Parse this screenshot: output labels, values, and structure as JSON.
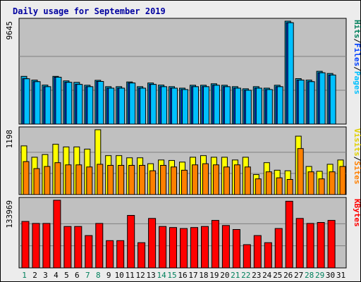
{
  "chart_data": {
    "type": "bar",
    "title": "Daily usage for September 2019",
    "colors": {
      "background": "#ececec",
      "plot_bg": "#c0c0c0",
      "title": "#0000a0",
      "hits": "#00a0d0",
      "files": "#0040ff",
      "pages": "#00c0ff",
      "visits": "#ffff00",
      "sites": "#ff8000",
      "kbytes": "#ff0000",
      "weekend_label": "#00805c"
    },
    "categories": [
      "1",
      "2",
      "3",
      "4",
      "5",
      "6",
      "7",
      "8",
      "9",
      "10",
      "11",
      "12",
      "13",
      "14",
      "15",
      "16",
      "17",
      "18",
      "19",
      "20",
      "21",
      "22",
      "23",
      "24",
      "25",
      "26",
      "27",
      "28",
      "29",
      "30",
      "31"
    ],
    "weekend_days": [
      "1",
      "7",
      "8",
      "14",
      "15",
      "21",
      "22",
      "28",
      "29"
    ],
    "panels": [
      {
        "id": "hits_files_pages",
        "max_label": "9645",
        "ylim": [
          0,
          9645
        ],
        "legend": [
          {
            "text": "Hits",
            "color": "#00805c"
          },
          {
            "text": "/",
            "color": "#000000"
          },
          {
            "text": "Files",
            "color": "#0040ff"
          },
          {
            "text": "/",
            "color": "#000000"
          },
          {
            "text": "Pages",
            "color": "#00c0ff"
          }
        ],
        "series": [
          {
            "name": "Hits",
            "color": "#00a0d0",
            "values": [
              4470,
              4120,
              3650,
              4470,
              4050,
              3910,
              3640,
              4100,
              3510,
              3510,
              3950,
              3510,
              3850,
              3650,
              3510,
              3370,
              3640,
              3640,
              3780,
              3640,
              3510,
              3310,
              3510,
              3370,
              3640,
              9645,
              4260,
              4120,
              4950,
              4740,
              null
            ]
          },
          {
            "name": "Files",
            "color": "#0040ff",
            "values": [
              4250,
              3980,
              3510,
              4390,
              3920,
              3720,
              3510,
              4000,
              3370,
              3370,
              3850,
              3370,
              3720,
              3510,
              3370,
              3240,
              3510,
              3510,
              3640,
              3510,
              3370,
              3170,
              3370,
              3240,
              3510,
              9500,
              4120,
              3980,
              4810,
              4600,
              null
            ]
          },
          {
            "name": "Pages",
            "color": "#00c0ff",
            "values": [
              4250,
              3980,
              3510,
              4390,
              3920,
              3720,
              3510,
              4000,
              3370,
              3370,
              3850,
              3370,
              3720,
              3510,
              3370,
              3240,
              3510,
              3510,
              3640,
              3510,
              3370,
              3170,
              3370,
              3240,
              3510,
              9500,
              4120,
              3980,
              4810,
              4600,
              null
            ]
          }
        ]
      },
      {
        "id": "visits_sites",
        "max_label": "1198",
        "ylim": [
          0,
          1198
        ],
        "legend": [
          {
            "text": "Visits",
            "color": "#e0d000"
          },
          {
            "text": "/",
            "color": "#000000"
          },
          {
            "text": "Sites",
            "color": "#ff8000"
          }
        ],
        "series": [
          {
            "name": "Visits",
            "color": "#ffff00",
            "values": [
              900,
              690,
              740,
              930,
              880,
              880,
              840,
              1198,
              720,
              720,
              680,
              680,
              570,
              640,
              630,
              600,
              690,
              720,
              690,
              690,
              640,
              690,
              370,
              590,
              450,
              440,
              1080,
              520,
              430,
              560,
              640
            ]
          },
          {
            "name": "Sites",
            "color": "#ff8000",
            "values": [
              610,
              480,
              520,
              590,
              550,
              550,
              510,
              560,
              540,
              540,
              540,
              540,
              440,
              540,
              510,
              450,
              550,
              570,
              550,
              510,
              550,
              510,
              290,
              420,
              310,
              280,
              850,
              420,
              290,
              420,
              520
            ]
          }
        ]
      },
      {
        "id": "kbytes",
        "max_label": "133969",
        "ylim": [
          0,
          133969
        ],
        "legend": [
          {
            "text": "KBytes",
            "color": "#ff0000"
          }
        ],
        "series": [
          {
            "name": "KBytes",
            "color": "#ff0000",
            "values": [
              92000,
              88000,
              88000,
              133969,
              82000,
              82000,
              64000,
              88000,
              54000,
              54000,
              104000,
              50000,
              98000,
              82000,
              80000,
              78000,
              80000,
              82000,
              94000,
              84000,
              76000,
              46000,
              64000,
              50000,
              78000,
              132000,
              98000,
              88000,
              90000,
              94000,
              null
            ]
          }
        ]
      }
    ]
  }
}
